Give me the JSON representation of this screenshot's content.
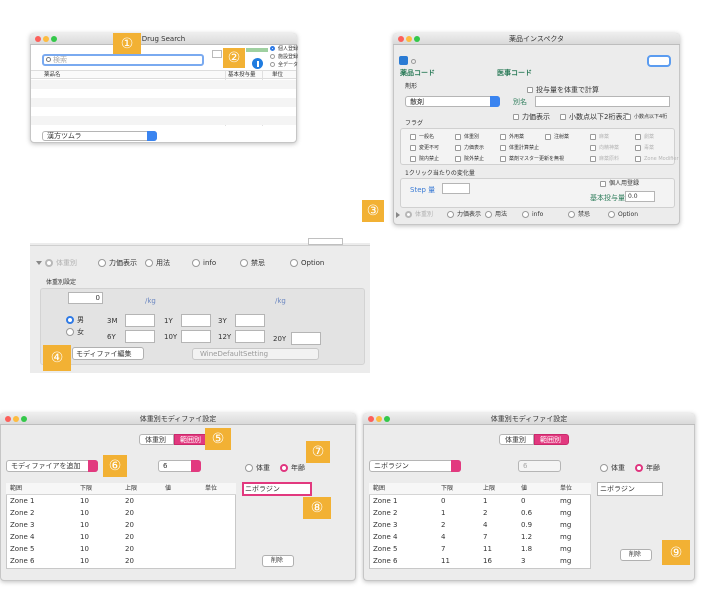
{
  "drug_search": {
    "title": "Drug Search",
    "search_placeholder": "検索",
    "badge_1": "①",
    "badge_2": "②",
    "scope_options": [
      "個人登録",
      "施設登録",
      "全データ"
    ],
    "columns": [
      "薬品名",
      "基本投与量",
      "単位"
    ],
    "category_popup": "漢方ツムラ"
  },
  "inspector": {
    "title": "薬品インスペクタ",
    "drug_code": "薬品コード",
    "medical_code": "医事コード",
    "form_label": "剤形",
    "form_value": "散剤",
    "weight_dose": "投与量を体重で計算",
    "alias": "別名",
    "potency": "力価表示",
    "decimal_2": "小数点以下2桁表示",
    "decimal_4": "小数点以下4桁",
    "flags_label": "フラグ",
    "flags": [
      [
        "一般名",
        "体重別",
        "外用薬",
        "注射薬"
      ],
      [
        "変更不可",
        "力価表示",
        "体重計算禁止"
      ],
      [
        "院内禁止",
        "院外禁止",
        "薬剤マスター更新を無視"
      ]
    ],
    "disabled_flags": [
      [
        "麻薬",
        "劇薬"
      ],
      [
        "向精神薬",
        "毒薬"
      ],
      [
        "麻薬原料",
        "Zone Modifier"
      ]
    ],
    "step_section": "1クリック当たりの変化量",
    "step_label": "Step 量",
    "personal": "個人用登録",
    "base_dose": "基本投与量",
    "base_dose_value": "0.0",
    "tabs": [
      "体重別",
      "力価表示",
      "用法",
      "info",
      "禁忌",
      "Option"
    ],
    "badge": "③"
  },
  "weight_panel": {
    "tabs": [
      "体重別",
      "力価表示",
      "用法",
      "info",
      "禁忌",
      "Option"
    ],
    "section": "体重別設定",
    "weight_value": 0,
    "units": [
      "/kg",
      "/kg"
    ],
    "sex": [
      "男",
      "女"
    ],
    "ages": [
      "3M",
      "1Y",
      "3Y",
      "6Y",
      "10Y",
      "12Y",
      "20Y"
    ],
    "edit_button": "モディファイ編集",
    "setting_popup": "WineDefaultSetting",
    "badge": "④"
  },
  "modifier_left": {
    "title": "体重別モディファイ設定",
    "segments": [
      "体重別",
      "範囲別"
    ],
    "add_popup": "モディファイアを追加",
    "count": 6,
    "basis": [
      "体重",
      "年齢"
    ],
    "name_field": "ニボラジン",
    "columns": [
      "範囲",
      "下限",
      "上限",
      "値",
      "単位"
    ],
    "rows": [
      [
        "Zone 1",
        10,
        20
      ],
      [
        "Zone 2",
        10,
        20
      ],
      [
        "Zone 3",
        10,
        20
      ],
      [
        "Zone 4",
        10,
        20
      ],
      [
        "Zone 5",
        10,
        20
      ],
      [
        "Zone 6",
        10,
        20
      ]
    ],
    "delete": "削除",
    "badges": [
      "⑤",
      "⑥",
      "⑦",
      "⑧"
    ]
  },
  "modifier_right": {
    "title": "体重別モディファイ設定",
    "segments": [
      "体重別",
      "範囲別"
    ],
    "modifier_popup": "ニボラジン",
    "count": 6,
    "basis": [
      "体重",
      "年齢"
    ],
    "name_field": "ニボラジン",
    "columns": [
      "範囲",
      "下限",
      "上限",
      "値",
      "単位"
    ],
    "rows": [
      [
        "Zone 1",
        0,
        1,
        0,
        "mg"
      ],
      [
        "Zone 2",
        1,
        2,
        0.6,
        "mg"
      ],
      [
        "Zone 3",
        2,
        4,
        0.9,
        "mg"
      ],
      [
        "Zone 4",
        4,
        7,
        1.2,
        "mg"
      ],
      [
        "Zone 5",
        7,
        11,
        1.8,
        "mg"
      ],
      [
        "Zone 6",
        11,
        16,
        3,
        "mg"
      ]
    ],
    "delete": "削除",
    "badge": "⑨"
  }
}
